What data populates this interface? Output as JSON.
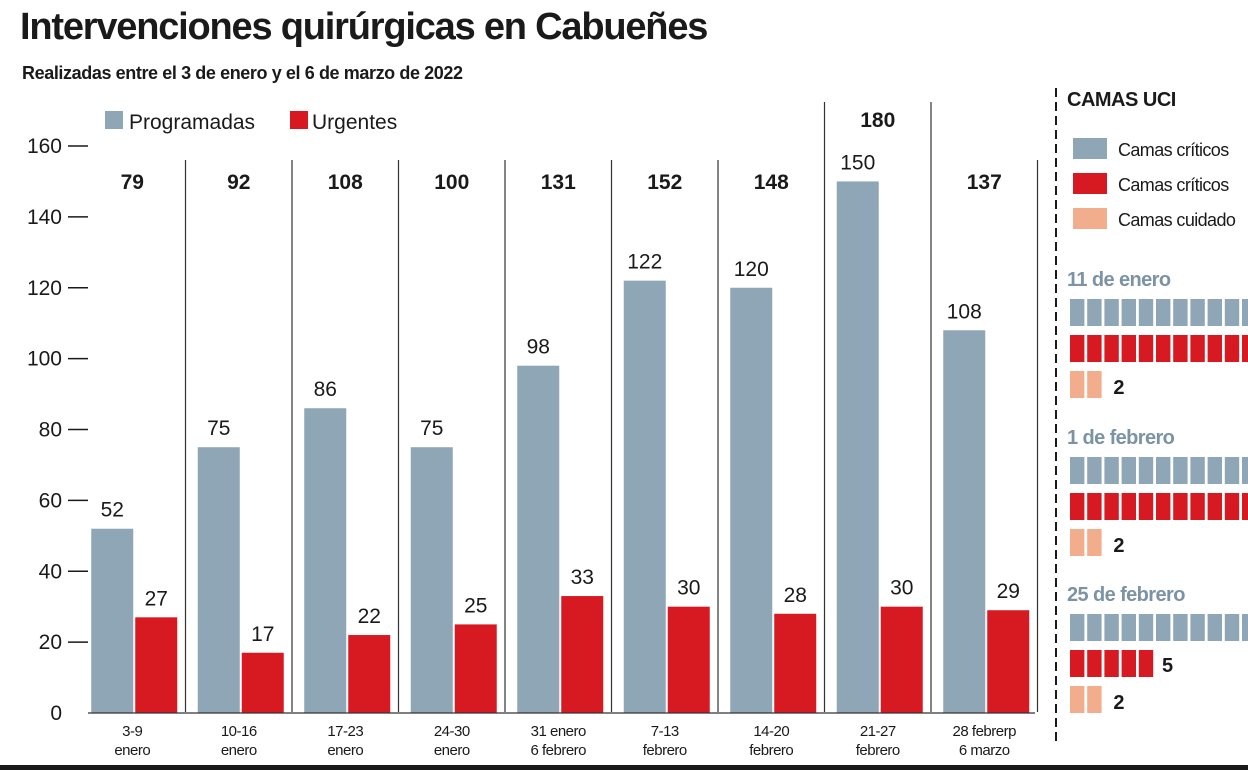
{
  "title": "Intervenciones quirúrgicas en Cabueñes",
  "subtitle": "Realizadas entre el 3 de enero y el 6 de marzo de 2022",
  "colors": {
    "programadas": "#8ea6b6",
    "urgentes": "#d71a21",
    "cuidados": "#f2ad8c",
    "text": "#1a1a1a",
    "week_totals": "#1a1a1a",
    "uci_dates": "#7b93a4"
  },
  "chart_data": [
    {
      "type": "bar",
      "categories": [
        "3-9 enero",
        "10-16 enero",
        "17-23 enero",
        "24-30 enero",
        "31 enero 6 febrero",
        "7-13 febrero",
        "14-20 febrero",
        "21-27 febrero",
        "28 febrerp 6 marzo"
      ],
      "category_lines": [
        [
          "3-9",
          "enero"
        ],
        [
          "10-16",
          "enero"
        ],
        [
          "17-23",
          "enero"
        ],
        [
          "24-30",
          "enero"
        ],
        [
          "31 enero",
          "6 febrero"
        ],
        [
          "7-13",
          "febrero"
        ],
        [
          "14-20",
          "febrero"
        ],
        [
          "21-27",
          "febrero"
        ],
        [
          "28 febrerp",
          "6 marzo"
        ]
      ],
      "totals": [
        79,
        92,
        108,
        100,
        131,
        152,
        148,
        180,
        137
      ],
      "series": [
        {
          "name": "Programadas",
          "values": [
            52,
            75,
            86,
            75,
            98,
            122,
            120,
            150,
            108
          ]
        },
        {
          "name": "Urgentes",
          "values": [
            27,
            17,
            22,
            25,
            33,
            30,
            28,
            30,
            29
          ]
        }
      ],
      "ylim": [
        0,
        160
      ],
      "yticks": [
        0,
        20,
        40,
        60,
        80,
        100,
        120,
        140,
        160
      ],
      "legend": "top-left",
      "grid": false
    },
    {
      "type": "unit",
      "title": "CAMAS UCI",
      "legend": [
        "Camas críticos",
        "Camas críticos",
        "Camas cuidado"
      ],
      "groups": [
        {
          "date": "11 de enero",
          "criticos_a": null,
          "criticos_b": null,
          "cuidados": 2
        },
        {
          "date": "1 de febrero",
          "criticos_a": null,
          "criticos_b": null,
          "cuidados": 2
        },
        {
          "date": "25 de febrero",
          "criticos_a": null,
          "criticos_b": 5,
          "cuidados": 2
        }
      ]
    }
  ]
}
